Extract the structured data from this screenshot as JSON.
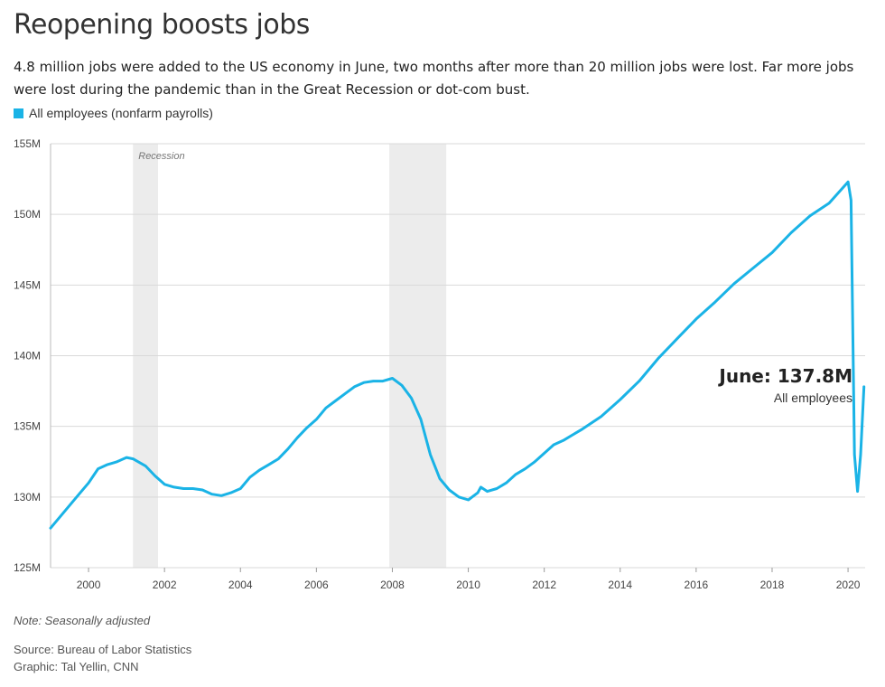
{
  "header": {
    "title": "Reopening boosts jobs",
    "subtitle": "4.8 million jobs were added to the US economy in June, two months after more than 20 million jobs were lost. Far more jobs were lost during the pandemic than in the Great Recession or dot-com bust."
  },
  "legend": {
    "label": "All employees (nonfarm payrolls)"
  },
  "colors": {
    "line": "#1ab3e6",
    "recession": "#ececec",
    "grid": "#d9d9d9"
  },
  "chart_data": {
    "type": "line",
    "title": "Reopening boosts jobs",
    "xlabel": "",
    "ylabel": "",
    "ylim": [
      125,
      155
    ],
    "xlim": [
      1999.0,
      2020.45
    ],
    "y_ticks": [
      {
        "value": 155,
        "label": "155M"
      },
      {
        "value": 150,
        "label": "150M"
      },
      {
        "value": 145,
        "label": "145M"
      },
      {
        "value": 140,
        "label": "140M"
      },
      {
        "value": 135,
        "label": "135M"
      },
      {
        "value": 130,
        "label": "130M"
      },
      {
        "value": 125,
        "label": "125M"
      }
    ],
    "x_ticks": [
      {
        "value": 2000,
        "label": "2000"
      },
      {
        "value": 2002,
        "label": "2002"
      },
      {
        "value": 2004,
        "label": "2004"
      },
      {
        "value": 2006,
        "label": "2006"
      },
      {
        "value": 2008,
        "label": "2008"
      },
      {
        "value": 2010,
        "label": "2010"
      },
      {
        "value": 2012,
        "label": "2012"
      },
      {
        "value": 2014,
        "label": "2014"
      },
      {
        "value": 2016,
        "label": "2016"
      },
      {
        "value": 2018,
        "label": "2018"
      },
      {
        "value": 2020,
        "label": "2020"
      }
    ],
    "recessions": [
      {
        "start": 2001.17,
        "end": 2001.83,
        "label": "Recession"
      },
      {
        "start": 2007.92,
        "end": 2009.42,
        "label": ""
      }
    ],
    "series": [
      {
        "name": "All employees (nonfarm payrolls)",
        "unit": "millions",
        "x": [
          1999.0,
          1999.25,
          1999.5,
          1999.75,
          2000.0,
          2000.25,
          2000.5,
          2000.75,
          2001.0,
          2001.17,
          2001.5,
          2001.75,
          2002.0,
          2002.25,
          2002.5,
          2002.75,
          2003.0,
          2003.25,
          2003.5,
          2003.75,
          2004.0,
          2004.25,
          2004.5,
          2004.75,
          2005.0,
          2005.25,
          2005.5,
          2005.75,
          2006.0,
          2006.25,
          2006.5,
          2006.75,
          2007.0,
          2007.25,
          2007.5,
          2007.75,
          2008.0,
          2008.25,
          2008.5,
          2008.75,
          2009.0,
          2009.25,
          2009.5,
          2009.75,
          2010.0,
          2010.25,
          2010.33,
          2010.5,
          2010.75,
          2011.0,
          2011.25,
          2011.5,
          2011.75,
          2012.0,
          2012.25,
          2012.5,
          2012.75,
          2013.0,
          2013.5,
          2014.0,
          2014.5,
          2015.0,
          2015.5,
          2016.0,
          2016.5,
          2017.0,
          2017.5,
          2018.0,
          2018.5,
          2019.0,
          2019.5,
          2020.0,
          2020.08,
          2020.17,
          2020.25,
          2020.33,
          2020.42
        ],
        "values": [
          127.8,
          128.6,
          129.4,
          130.2,
          131.0,
          132.0,
          132.3,
          132.5,
          132.8,
          132.7,
          132.2,
          131.5,
          130.9,
          130.7,
          130.6,
          130.6,
          130.5,
          130.2,
          130.1,
          130.3,
          130.6,
          131.4,
          131.9,
          132.3,
          132.7,
          133.4,
          134.2,
          134.9,
          135.5,
          136.3,
          136.8,
          137.3,
          137.8,
          138.1,
          138.2,
          138.2,
          138.4,
          137.9,
          137.0,
          135.5,
          133.0,
          131.3,
          130.5,
          130.0,
          129.8,
          130.3,
          130.7,
          130.4,
          130.6,
          131.0,
          131.6,
          132.0,
          132.5,
          133.1,
          133.7,
          134.0,
          134.4,
          134.8,
          135.7,
          136.9,
          138.2,
          139.8,
          141.2,
          142.6,
          143.8,
          145.1,
          146.2,
          147.3,
          148.7,
          149.9,
          150.8,
          152.3,
          151.0,
          133.0,
          130.4,
          133.0,
          137.8
        ]
      }
    ],
    "annotations": [
      {
        "x": 2020.42,
        "value": 137.8,
        "label": "June: 137.8M",
        "sublabel": "All employees"
      }
    ]
  },
  "footer": {
    "note": "Note: Seasonally adjusted",
    "source": "Source: Bureau of Labor Statistics",
    "credit": "Graphic: Tal Yellin, CNN"
  }
}
